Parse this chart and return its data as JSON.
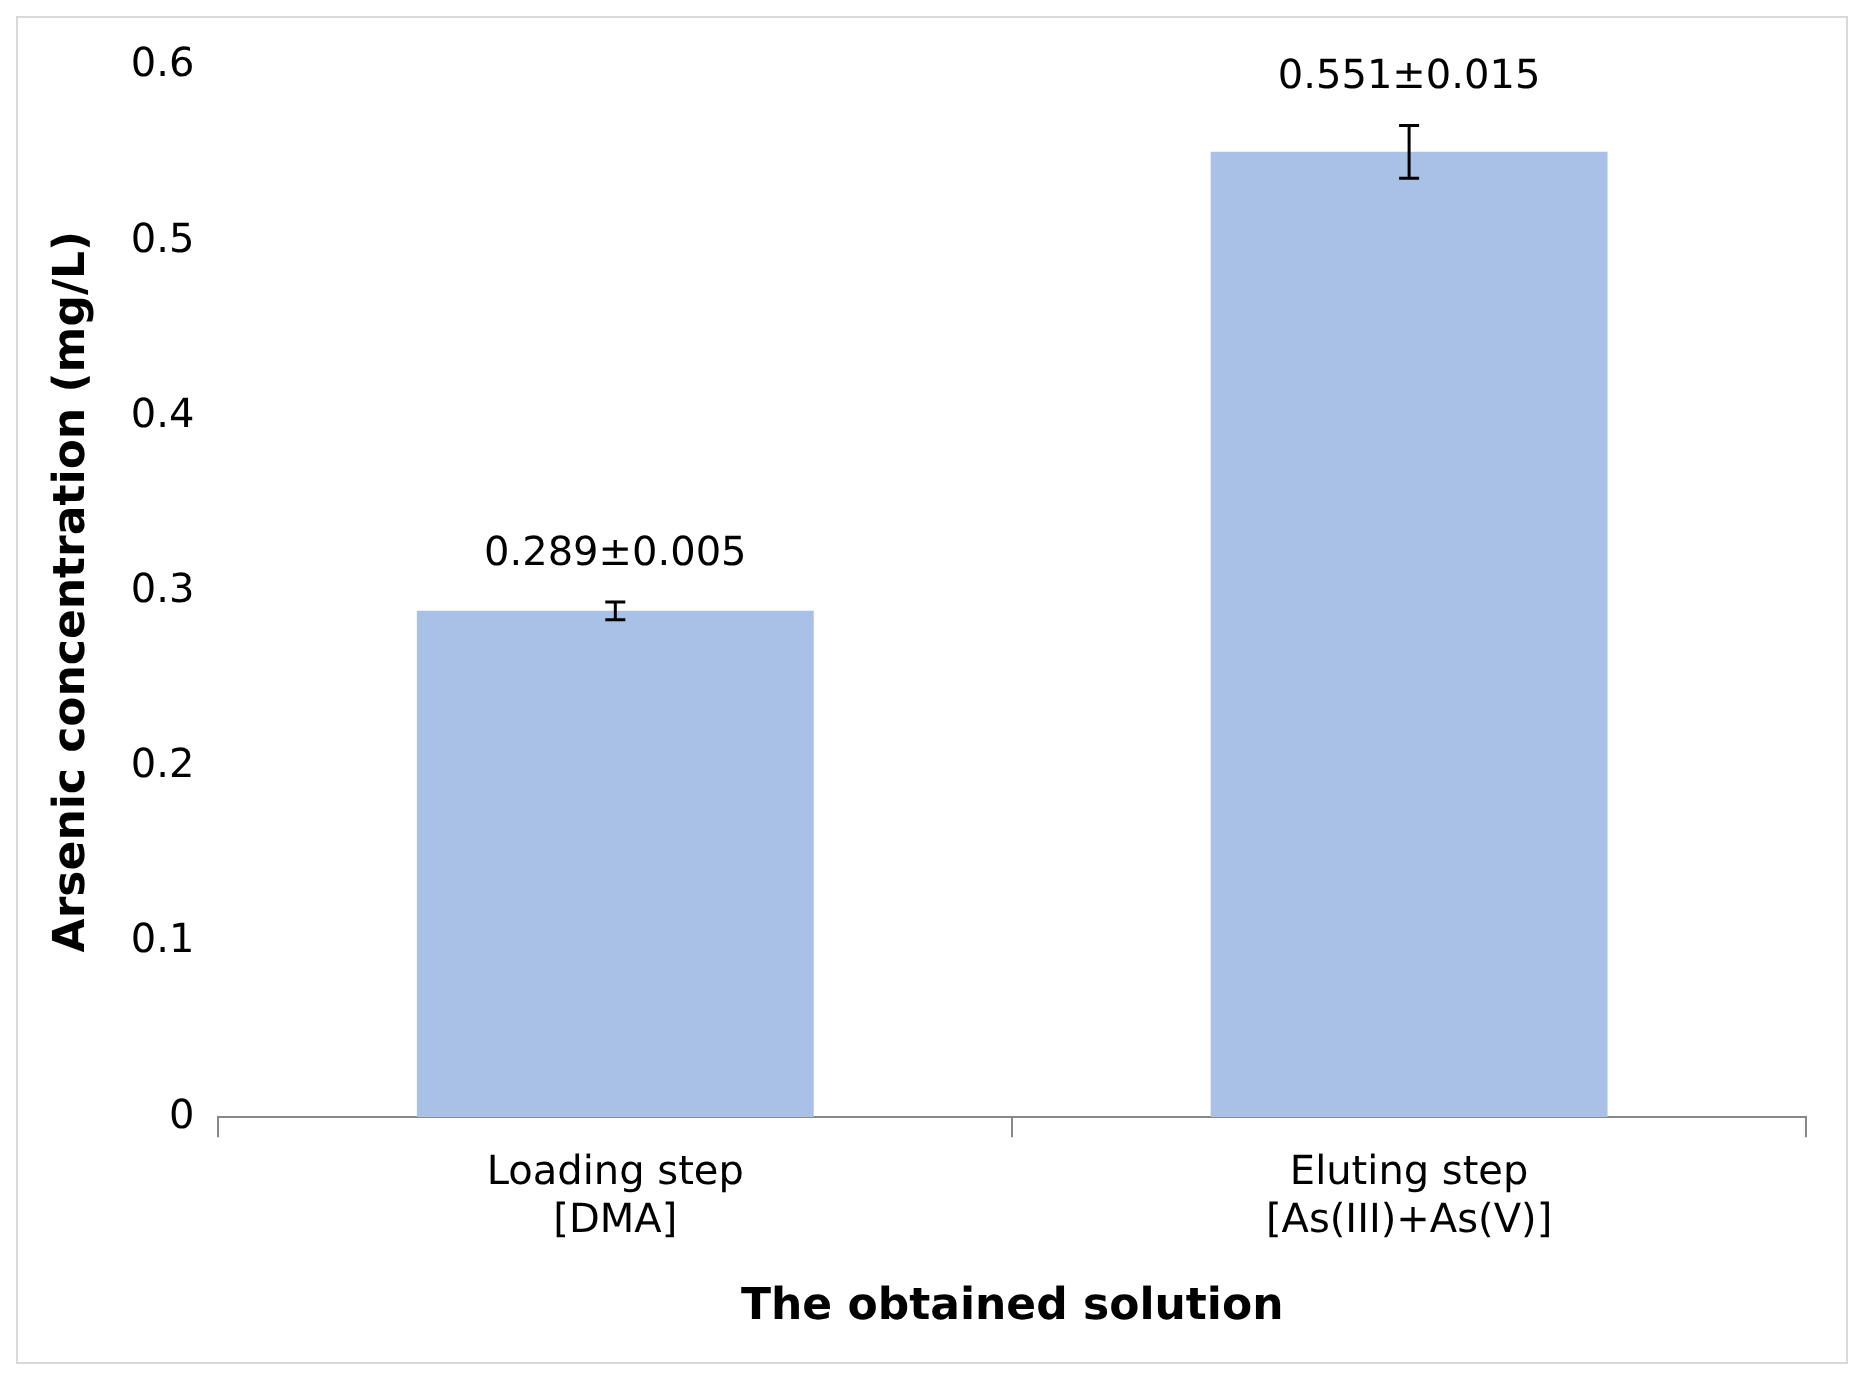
{
  "chart_data": {
    "type": "bar",
    "xlabel": "The obtained solution",
    "ylabel": "Arsenic concentration (mg/L)",
    "categories": [
      "Loading step\n[DMA]",
      "Eluting step\n[As(III)+As(V)]"
    ],
    "values": [
      0.289,
      0.551
    ],
    "errors": [
      0.005,
      0.015
    ],
    "value_labels": [
      "0.289±0.005",
      "0.551±0.015"
    ],
    "color": "#a9c1e6",
    "ylim": [
      0,
      0.6
    ],
    "yticks": [
      0,
      0.1,
      0.2,
      0.3,
      0.4,
      0.5,
      0.6
    ],
    "grid": false,
    "legend": false
  }
}
